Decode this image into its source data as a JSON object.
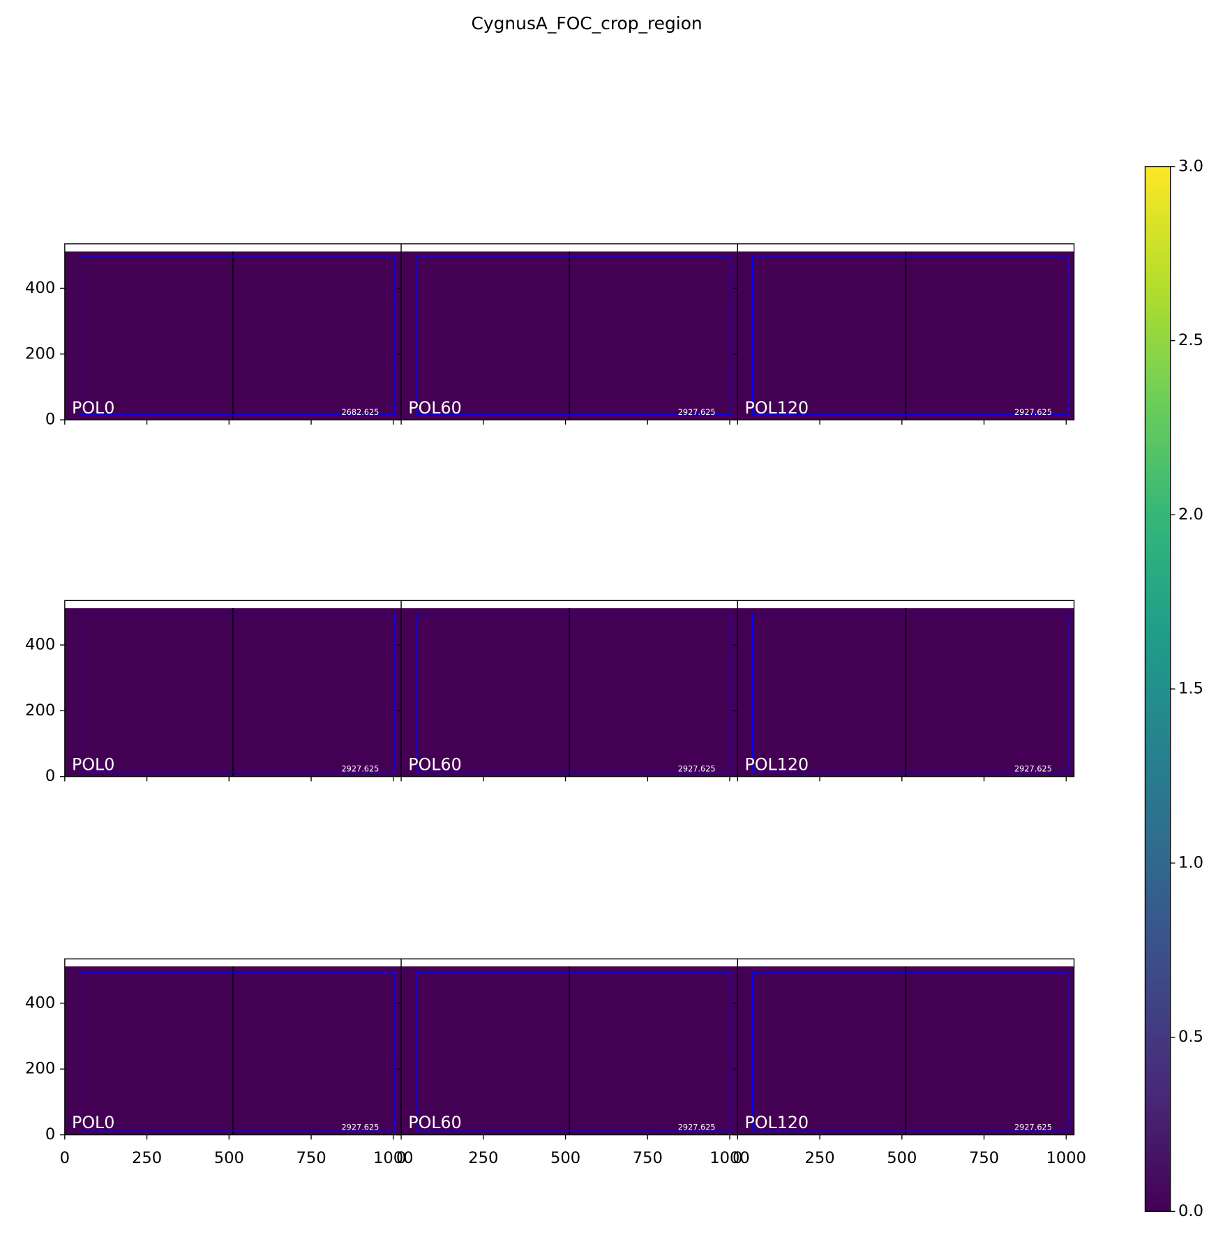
{
  "chart_data": {
    "type": "image-grid",
    "title": "CygnusA_FOC_crop_region",
    "rows": 3,
    "cols": 3,
    "panels": [
      {
        "label": "POL0",
        "value_label": "2682.625"
      },
      {
        "label": "POL60",
        "value_label": "2927.625"
      },
      {
        "label": "POL120",
        "value_label": "2927.625"
      },
      {
        "label": "POL0",
        "value_label": "2927.625"
      },
      {
        "label": "POL60",
        "value_label": "2927.625"
      },
      {
        "label": "POL120",
        "value_label": "2927.625"
      },
      {
        "label": "POL0",
        "value_label": "2927.625"
      },
      {
        "label": "POL60",
        "value_label": "2927.625"
      },
      {
        "label": "POL120",
        "value_label": "2927.625"
      }
    ],
    "xlim": [
      0,
      1024
    ],
    "ylim": [
      0,
      535
    ],
    "xticks": [
      0,
      250,
      500,
      750,
      1000
    ],
    "yticks": [
      0,
      200,
      400
    ],
    "image_top": 512,
    "image_value": 0,
    "divider_x": 512,
    "crop_box": {
      "x": [
        45,
        1005
      ],
      "y": [
        15,
        495
      ],
      "color": "#0000ff"
    },
    "colorbar": {
      "lim": [
        0,
        3
      ],
      "ticks": [
        {
          "value": 0,
          "label": "0.0"
        },
        {
          "value": 0.5,
          "label": "0.5"
        },
        {
          "value": 1,
          "label": "1.0"
        },
        {
          "value": 1.5,
          "label": "1.5"
        },
        {
          "value": 2,
          "label": "2.0"
        },
        {
          "value": 2.5,
          "label": "2.5"
        },
        {
          "value": 3,
          "label": "3.0"
        }
      ],
      "colormap": [
        "#440154",
        "#482878",
        "#3e4989",
        "#31688e",
        "#26828e",
        "#1f9e89",
        "#35b779",
        "#6ece58",
        "#b5de2b",
        "#fde725"
      ]
    }
  }
}
